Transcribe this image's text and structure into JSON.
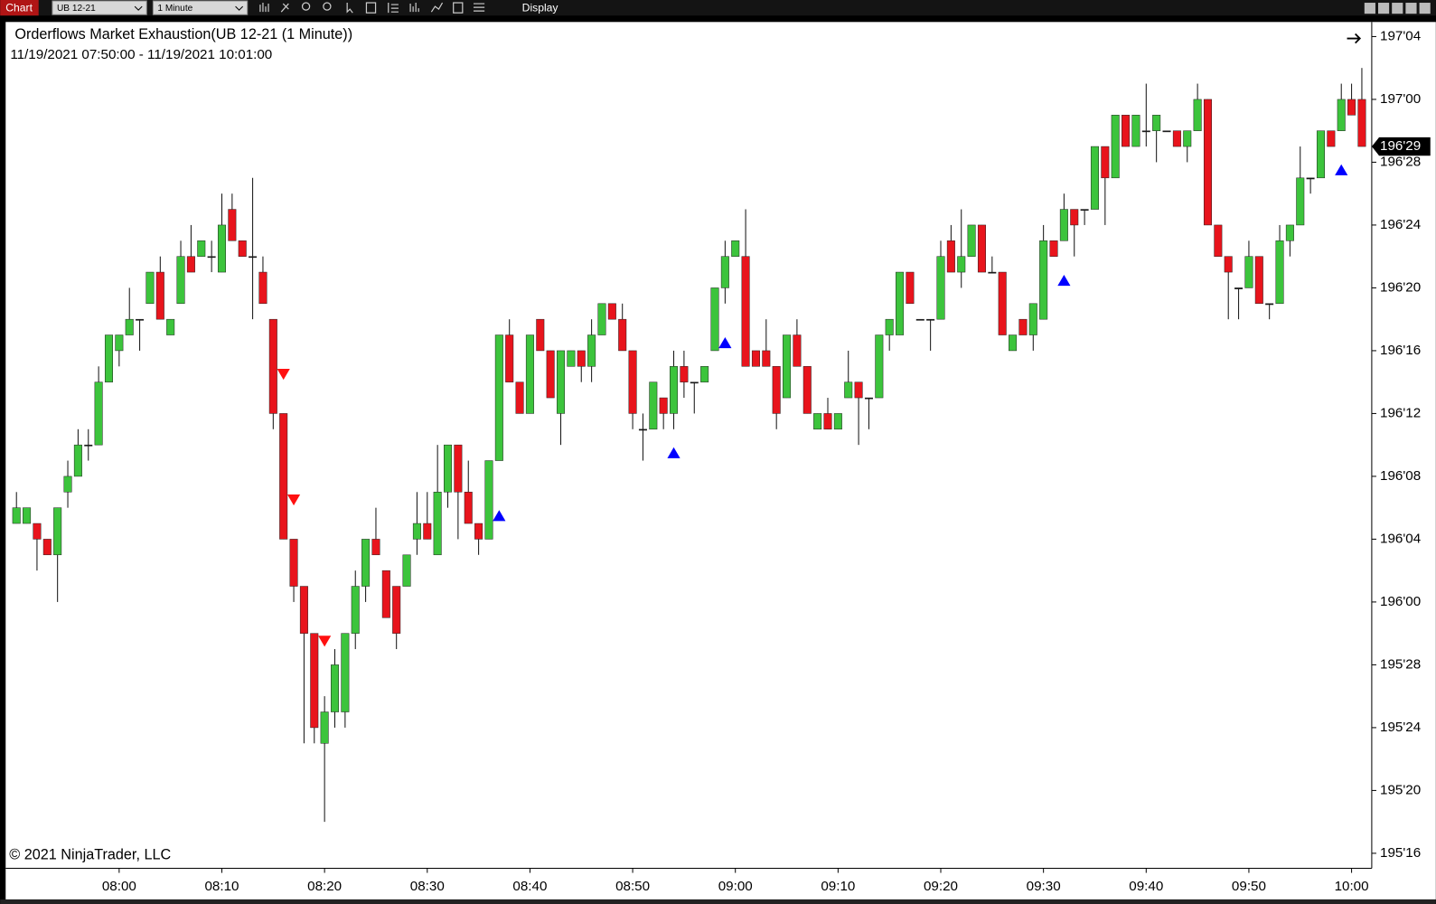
{
  "toolbar": {
    "tab": "Chart",
    "instrument": "UB 12-21",
    "interval": "1 Minute",
    "menu": "Display"
  },
  "chart_data": {
    "type": "candlestick",
    "title": "Orderflows Market Exhaustion(UB 12-21 (1 Minute))",
    "subtitle": "11/19/2021 07:50:00 - 11/19/2021 10:01:00",
    "copyright": "© 2021 NinjaTrader, LLC",
    "x": [
      "07:50",
      "07:51",
      "07:52",
      "07:53",
      "07:54",
      "07:55",
      "07:56",
      "07:57",
      "07:58",
      "07:59",
      "08:00",
      "08:01",
      "08:02",
      "08:03",
      "08:04",
      "08:05",
      "08:06",
      "08:07",
      "08:08",
      "08:09",
      "08:10",
      "08:11",
      "08:12",
      "08:13",
      "08:14",
      "08:15",
      "08:16",
      "08:17",
      "08:18",
      "08:19",
      "08:20",
      "08:21",
      "08:22",
      "08:23",
      "08:24",
      "08:25",
      "08:26",
      "08:27",
      "08:28",
      "08:29",
      "08:30",
      "08:31",
      "08:32",
      "08:33",
      "08:34",
      "08:35",
      "08:36",
      "08:37",
      "08:38",
      "08:39",
      "08:40",
      "08:41",
      "08:42",
      "08:43",
      "08:44",
      "08:45",
      "08:46",
      "08:47",
      "08:48",
      "08:49",
      "08:50",
      "08:51",
      "08:52",
      "08:53",
      "08:54",
      "08:55",
      "08:56",
      "08:57",
      "08:58",
      "08:59",
      "09:00",
      "09:01",
      "09:02",
      "09:03",
      "09:04",
      "09:05",
      "09:06",
      "09:07",
      "09:08",
      "09:09",
      "09:10",
      "09:11",
      "09:12",
      "09:13",
      "09:14",
      "09:15",
      "09:16",
      "09:17",
      "09:18",
      "09:19",
      "09:20",
      "09:21",
      "09:22",
      "09:23",
      "09:24",
      "09:25",
      "09:26",
      "09:27",
      "09:28",
      "09:29",
      "09:30",
      "09:31",
      "09:32",
      "09:33",
      "09:34",
      "09:35",
      "09:36",
      "09:37",
      "09:38",
      "09:39",
      "09:40",
      "09:41",
      "09:42",
      "09:43",
      "09:44",
      "09:45",
      "09:46",
      "09:47",
      "09:48",
      "09:49",
      "09:50",
      "09:51",
      "09:52",
      "09:53",
      "09:54",
      "09:55",
      "09:56",
      "09:57",
      "09:58",
      "09:59",
      "10:00",
      "10:01"
    ],
    "open": [
      196.15625,
      196.15625,
      196.15625,
      196.125,
      196.09375,
      196.21875,
      196.25,
      196.3125,
      196.3125,
      196.4375,
      196.5,
      196.53125,
      196.5625,
      196.59375,
      196.65625,
      196.53125,
      196.59375,
      196.6875,
      196.6875,
      196.6875,
      196.65625,
      196.78125,
      196.71875,
      196.6875,
      196.65625,
      196.5625,
      196.375,
      196.125,
      196.03125,
      195.9375,
      195.71875,
      195.78125,
      195.78125,
      195.9375,
      196.03125,
      196.125,
      196.0625,
      196.03125,
      196.03125,
      196.125,
      196.15625,
      196.09375,
      196.21875,
      196.3125,
      196.21875,
      196.15625,
      196.125,
      196.28125,
      196.53125,
      196.4375,
      196.375,
      196.5625,
      196.5,
      196.375,
      196.46875,
      196.5,
      196.46875,
      196.53125,
      196.59375,
      196.5625,
      196.5,
      196.34375,
      196.34375,
      196.40625,
      196.375,
      196.46875,
      196.4375,
      196.4375,
      196.5,
      196.625,
      196.6875,
      196.6875,
      196.5,
      196.5,
      196.46875,
      196.40625,
      196.53125,
      196.46875,
      196.34375,
      196.375,
      196.34375,
      196.40625,
      196.4375,
      196.40625,
      196.40625,
      196.53125,
      196.53125,
      196.65625,
      196.5625,
      196.5625,
      196.5625,
      196.71875,
      196.65625,
      196.6875,
      196.75,
      196.65625,
      196.65625,
      196.5,
      196.5625,
      196.53125,
      196.5625,
      196.71875,
      196.71875,
      196.78125,
      196.78125,
      196.78125,
      196.90625,
      196.84375,
      196.96875,
      196.90625,
      196.9375,
      196.9375,
      196.9375,
      196.9375,
      196.90625,
      196.9375,
      197,
      196.75,
      196.6875,
      196.625,
      196.625,
      196.6875,
      196.59375,
      196.59375,
      196.71875,
      196.75,
      196.84375,
      196.84375,
      196.9375,
      196.9375,
      197,
      197
    ],
    "high": [
      196.21875,
      196.1875,
      196.15625,
      196.125,
      196.1875,
      196.28125,
      196.34375,
      196.34375,
      196.46875,
      196.53125,
      196.53125,
      196.625,
      196.5625,
      196.65625,
      196.6875,
      196.5625,
      196.71875,
      196.75,
      196.71875,
      196.71875,
      196.8125,
      196.8125,
      196.71875,
      196.84375,
      196.6875,
      196.5625,
      196.375,
      196.125,
      196.03125,
      195.9375,
      195.8125,
      195.90625,
      195.9375,
      196.0625,
      196.125,
      196.1875,
      196.0625,
      196.03125,
      196.09375,
      196.21875,
      196.21875,
      196.3125,
      196.3125,
      196.3125,
      196.28125,
      196.15625,
      196.28125,
      196.53125,
      196.5625,
      196.4375,
      196.53125,
      196.5625,
      196.5,
      196.5,
      196.5,
      196.5,
      196.5625,
      196.59375,
      196.59375,
      196.59375,
      196.5,
      196.375,
      196.4375,
      196.40625,
      196.5,
      196.5,
      196.4375,
      196.46875,
      196.625,
      196.71875,
      196.71875,
      196.78125,
      196.5,
      196.5625,
      196.46875,
      196.53125,
      196.5625,
      196.46875,
      196.375,
      196.40625,
      196.375,
      196.5,
      196.4375,
      196.40625,
      196.53125,
      196.5625,
      196.65625,
      196.65625,
      196.5625,
      196.5625,
      196.71875,
      196.75,
      196.78125,
      196.75,
      196.75,
      196.6875,
      196.65625,
      196.53125,
      196.5625,
      196.59375,
      196.75,
      196.71875,
      196.8125,
      196.78125,
      196.78125,
      196.90625,
      196.90625,
      196.96875,
      196.96875,
      196.96875,
      197.03125,
      196.96875,
      196.9375,
      196.9375,
      196.9375,
      197.03125,
      197,
      196.75,
      196.6875,
      196.625,
      196.71875,
      196.6875,
      196.59375,
      196.75,
      196.75,
      196.90625,
      196.84375,
      196.9375,
      196.9375,
      197.03125,
      197.03125,
      197.0625
    ],
    "low": [
      196.15625,
      196.15625,
      196.0625,
      196.09375,
      196,
      196.1875,
      196.25,
      196.28125,
      196.3125,
      196.4375,
      196.46875,
      196.53125,
      196.5,
      196.59375,
      196.5625,
      196.53125,
      196.59375,
      196.65625,
      196.6875,
      196.65625,
      196.65625,
      196.71875,
      196.6875,
      196.5625,
      196.59375,
      196.34375,
      196.125,
      196,
      195.71875,
      195.71875,
      195.5625,
      195.75,
      195.75,
      195.90625,
      196,
      196.09375,
      195.96875,
      195.90625,
      196.03125,
      196.09375,
      196.125,
      196.09375,
      196.1875,
      196.125,
      196.15625,
      196.09375,
      196.125,
      196.28125,
      196.4375,
      196.375,
      196.375,
      196.5,
      196.40625,
      196.3125,
      196.46875,
      196.4375,
      196.4375,
      196.53125,
      196.5625,
      196.5,
      196.34375,
      196.28125,
      196.34375,
      196.34375,
      196.34375,
      196.40625,
      196.375,
      196.4375,
      196.5,
      196.59375,
      196.6875,
      196.46875,
      196.46875,
      196.46875,
      196.34375,
      196.40625,
      196.46875,
      196.375,
      196.34375,
      196.34375,
      196.34375,
      196.40625,
      196.3125,
      196.34375,
      196.40625,
      196.5,
      196.53125,
      196.59375,
      196.5625,
      196.5,
      196.5625,
      196.65625,
      196.625,
      196.6875,
      196.65625,
      196.65625,
      196.53125,
      196.5,
      196.53125,
      196.5,
      196.5625,
      196.6875,
      196.71875,
      196.6875,
      196.75,
      196.78125,
      196.75,
      196.84375,
      196.90625,
      196.90625,
      196.90625,
      196.875,
      196.9375,
      196.90625,
      196.875,
      196.9375,
      196.75,
      196.6875,
      196.5625,
      196.5625,
      196.625,
      196.59375,
      196.5625,
      196.59375,
      196.6875,
      196.75,
      196.8125,
      196.84375,
      196.90625,
      196.9375,
      196.96875,
      196.90625
    ],
    "close": [
      196.1875,
      196.1875,
      196.125,
      196.09375,
      196.1875,
      196.25,
      196.3125,
      196.3125,
      196.4375,
      196.53125,
      196.53125,
      196.5625,
      196.5625,
      196.65625,
      196.5625,
      196.5625,
      196.6875,
      196.65625,
      196.71875,
      196.6875,
      196.75,
      196.71875,
      196.6875,
      196.6875,
      196.59375,
      196.375,
      196.125,
      196.03125,
      195.9375,
      195.75,
      195.78125,
      195.875,
      195.9375,
      196.03125,
      196.125,
      196.09375,
      195.96875,
      195.9375,
      196.09375,
      196.15625,
      196.125,
      196.21875,
      196.3125,
      196.21875,
      196.15625,
      196.125,
      196.28125,
      196.53125,
      196.4375,
      196.375,
      196.53125,
      196.5,
      196.40625,
      196.5,
      196.5,
      196.46875,
      196.53125,
      196.59375,
      196.5625,
      196.5,
      196.375,
      196.34375,
      196.4375,
      196.375,
      196.46875,
      196.4375,
      196.4375,
      196.46875,
      196.625,
      196.6875,
      196.71875,
      196.46875,
      196.46875,
      196.46875,
      196.375,
      196.53125,
      196.46875,
      196.375,
      196.375,
      196.34375,
      196.375,
      196.4375,
      196.40625,
      196.40625,
      196.53125,
      196.5625,
      196.65625,
      196.59375,
      196.5625,
      196.5625,
      196.6875,
      196.65625,
      196.6875,
      196.75,
      196.65625,
      196.65625,
      196.53125,
      196.53125,
      196.53125,
      196.59375,
      196.71875,
      196.6875,
      196.78125,
      196.75,
      196.78125,
      196.90625,
      196.84375,
      196.96875,
      196.90625,
      196.96875,
      196.9375,
      196.96875,
      196.9375,
      196.90625,
      196.9375,
      197,
      196.75,
      196.6875,
      196.65625,
      196.625,
      196.6875,
      196.59375,
      196.59375,
      196.71875,
      196.75,
      196.84375,
      196.84375,
      196.9375,
      196.90625,
      197,
      196.96875,
      196.90625
    ],
    "up_color": "#3cc43c",
    "down_color": "#e8141c",
    "ylim": [
      195.472,
      197.154
    ],
    "yticks": [
      {
        "value": 195.5,
        "label": "195'16"
      },
      {
        "value": 195.625,
        "label": "195'20"
      },
      {
        "value": 195.75,
        "label": "195'24"
      },
      {
        "value": 195.875,
        "label": "195'28"
      },
      {
        "value": 196,
        "label": "196'00"
      },
      {
        "value": 196.125,
        "label": "196'04"
      },
      {
        "value": 196.25,
        "label": "196'08"
      },
      {
        "value": 196.375,
        "label": "196'12"
      },
      {
        "value": 196.5,
        "label": "196'16"
      },
      {
        "value": 196.625,
        "label": "196'20"
      },
      {
        "value": 196.75,
        "label": "196'24"
      },
      {
        "value": 196.875,
        "label": "196'28"
      },
      {
        "value": 197,
        "label": "197'00"
      },
      {
        "value": 197.125,
        "label": "197'04"
      }
    ],
    "xticks": [
      "08:00",
      "08:10",
      "08:20",
      "08:30",
      "08:40",
      "08:50",
      "09:00",
      "09:10",
      "09:20",
      "09:30",
      "09:40",
      "09:50",
      "10:00"
    ],
    "last_price": {
      "value": 196.90625,
      "label": "196'29"
    },
    "signals": [
      {
        "x": "08:16",
        "direction": "down",
        "value": 196.453
      },
      {
        "x": "08:17",
        "direction": "down",
        "value": 196.203
      },
      {
        "x": "08:20",
        "direction": "down",
        "value": 195.922
      },
      {
        "x": "08:37",
        "direction": "up",
        "value": 196.172
      },
      {
        "x": "08:54",
        "direction": "up",
        "value": 196.297
      },
      {
        "x": "08:59",
        "direction": "up",
        "value": 196.516
      },
      {
        "x": "09:32",
        "direction": "up",
        "value": 196.64
      },
      {
        "x": "09:59",
        "direction": "up",
        "value": 196.86
      }
    ],
    "signal_up_color": "#0000ff",
    "signal_down_color": "#ff1010",
    "grid": false
  }
}
